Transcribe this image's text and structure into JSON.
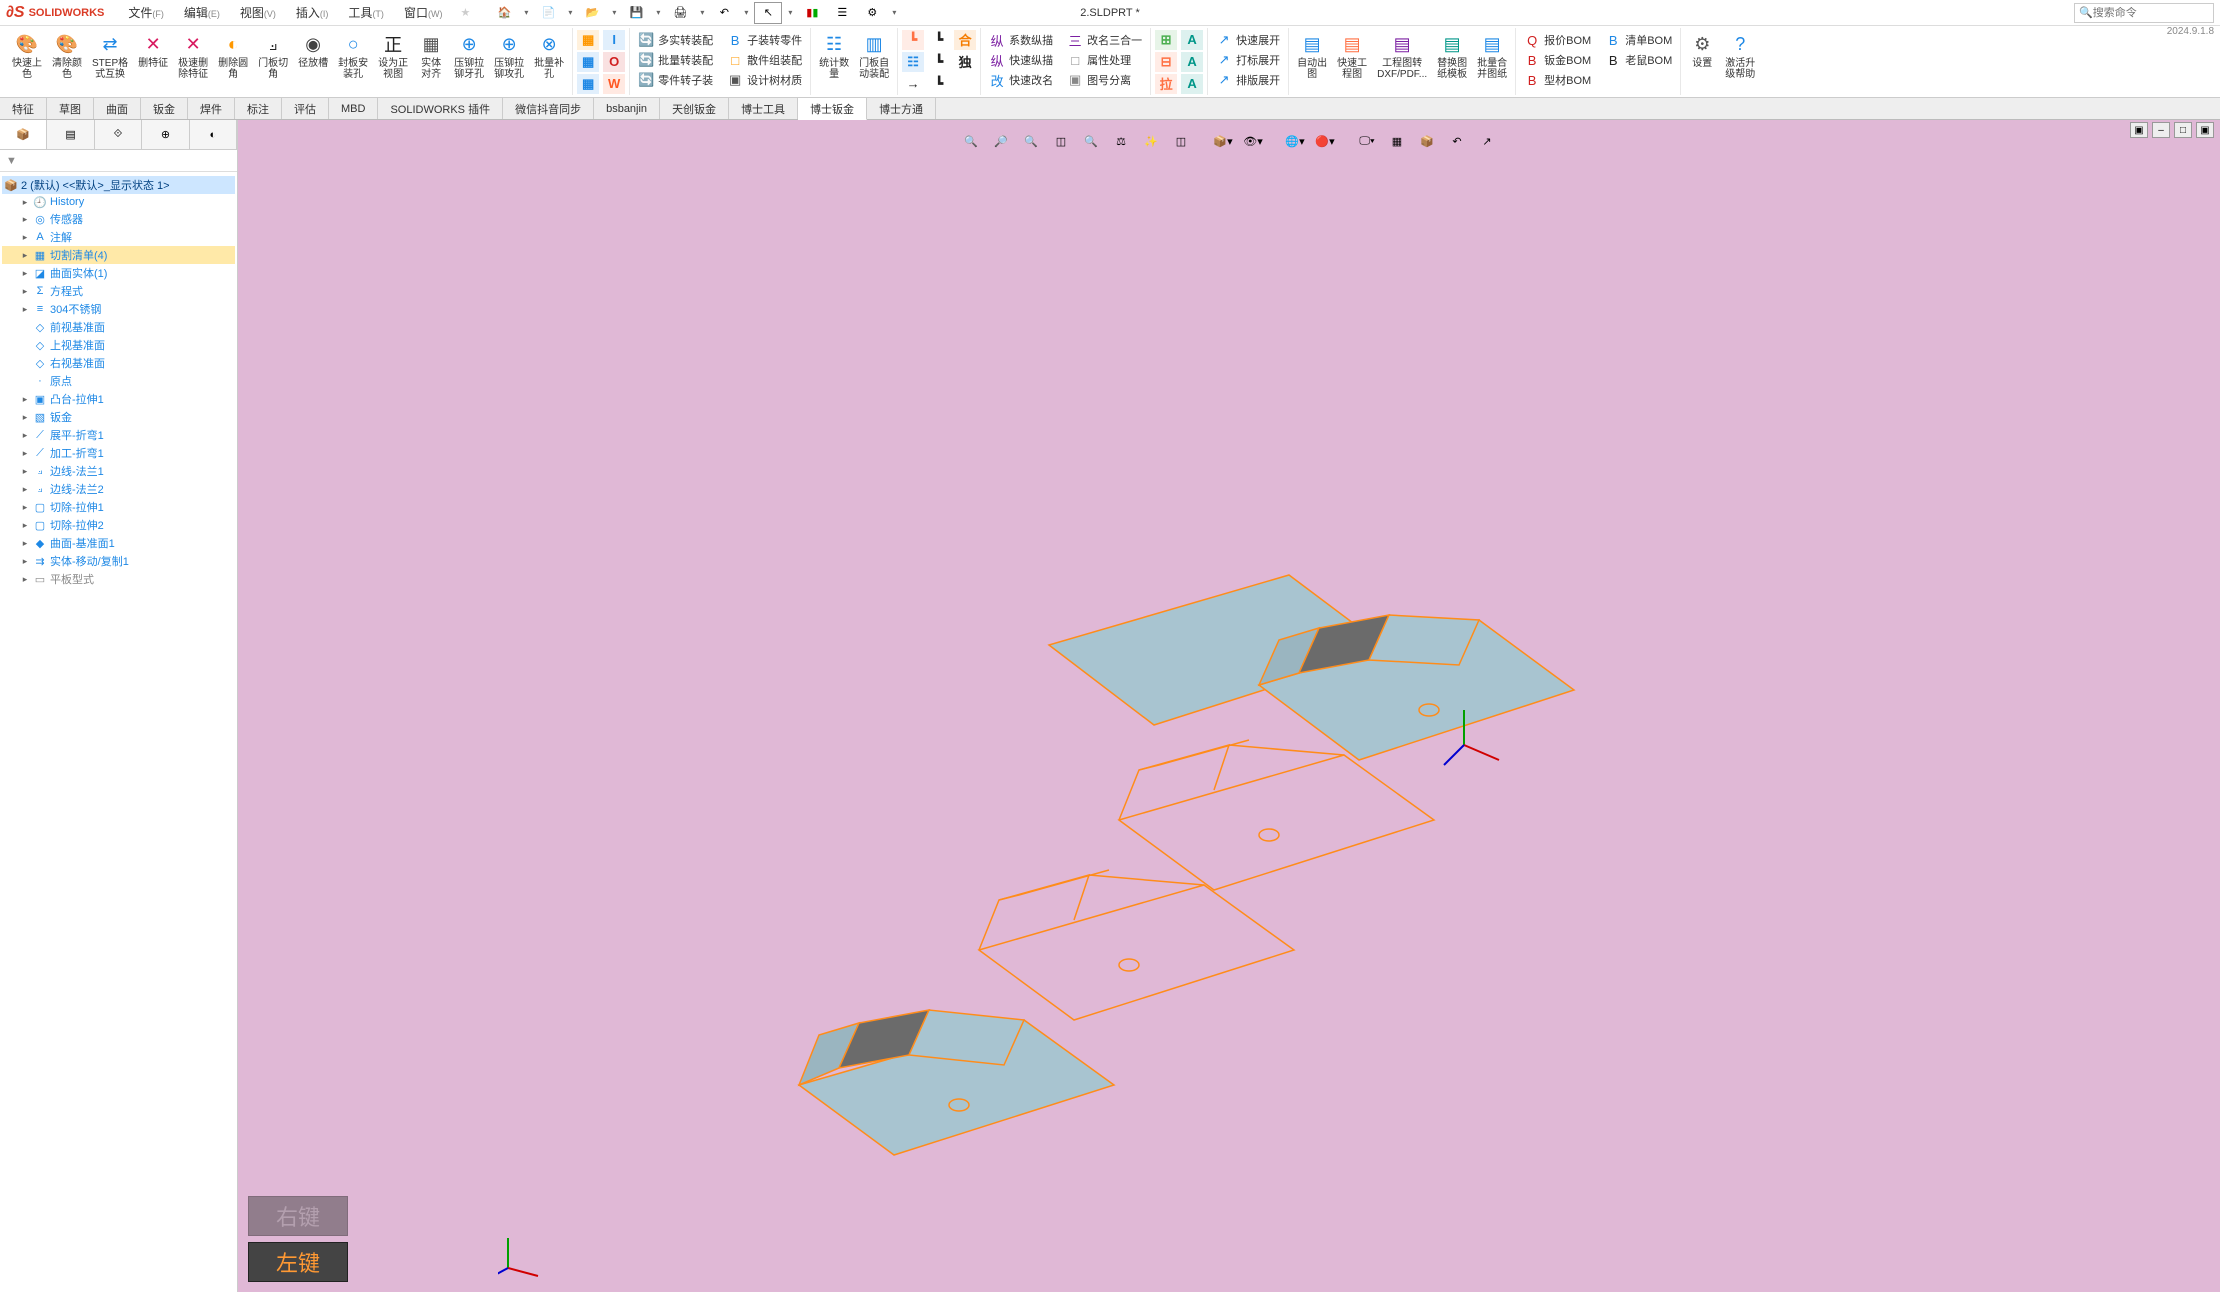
{
  "app": {
    "logo_text": "SOLIDWORKS",
    "doc_title": "2.SLDPRT *",
    "version": "2024.9.1.8",
    "search_ph": "搜索命令"
  },
  "menu": [
    {
      "l": "文件",
      "s": "(F)"
    },
    {
      "l": "编辑",
      "s": "(E)"
    },
    {
      "l": "视图",
      "s": "(V)"
    },
    {
      "l": "插入",
      "s": "(I)"
    },
    {
      "l": "工具",
      "s": "(T)"
    },
    {
      "l": "窗口",
      "s": "(W)"
    }
  ],
  "tabs": [
    "特征",
    "草图",
    "曲面",
    "钣金",
    "焊件",
    "标注",
    "评估",
    "MBD",
    "SOLIDWORKS 插件",
    "微信抖音同步",
    "bsbanjin",
    "天创钣金",
    "博士工具",
    "博士钣金",
    "博士方通"
  ],
  "active_tab": "博士钣金",
  "ribbon_lg": [
    {
      "l": "快速上\n色",
      "c": "#d01f1f",
      "g": "🎨"
    },
    {
      "l": "清除颜\n色",
      "c": "#222",
      "g": "🎨"
    },
    {
      "l": "STEP格\n式互换",
      "c": "#1e88e5",
      "g": "⇄"
    },
    {
      "l": "删特征",
      "c": "#d81b60",
      "g": "✕"
    },
    {
      "l": "极速删\n除特征",
      "c": "#d81b60",
      "g": "✕"
    },
    {
      "l": "删除圆\n角",
      "c": "#ff9800",
      "g": "◐"
    },
    {
      "l": "门板切\n角",
      "c": "#222",
      "g": "⟓"
    },
    {
      "l": "径放槽",
      "c": "#424242",
      "g": "◉"
    },
    {
      "l": "封板安\n装孔",
      "c": "#1e88e5",
      "g": "○"
    },
    {
      "l": "设为正\n视图",
      "c": "#222",
      "g": "正"
    },
    {
      "l": "实体\n对齐",
      "c": "#555",
      "g": "▦"
    },
    {
      "l": "压铆拉\n铆牙孔",
      "c": "#1e88e5",
      "g": "⊕"
    },
    {
      "l": "压铆拉\n铆攻孔",
      "c": "#1e88e5",
      "g": "⊕"
    },
    {
      "l": "批量补\n孔",
      "c": "#1e88e5",
      "g": "⊗"
    }
  ],
  "ribbon_mid_cols": [
    [
      {
        "c": "#ff9800",
        "g": "▦"
      },
      {
        "c": "#1e88e5",
        "g": "▦"
      },
      {
        "c": "#1e88e5",
        "g": "▦"
      }
    ],
    [
      {
        "c": "#1e88e5",
        "g": "I"
      },
      {
        "c": "#d01f1f",
        "g": "O"
      },
      {
        "c": "#ff5722",
        "g": "W"
      }
    ]
  ],
  "ribbon_named": [
    [
      {
        "g": "🔄",
        "c": "#4caf50",
        "l": "多实转装配"
      },
      {
        "g": "🔄",
        "c": "#4caf50",
        "l": "批量转装配"
      },
      {
        "g": "🔄",
        "c": "#ff9800",
        "l": "零件转子装"
      }
    ],
    [
      {
        "g": "B",
        "c": "#1e88e5",
        "l": "子装转零件"
      },
      {
        "g": "□",
        "c": "#ff9800",
        "l": "散件组装配"
      },
      {
        "g": "▣",
        "c": "#555",
        "l": "设计树材质"
      }
    ]
  ],
  "ribbon_stat": [
    {
      "l": "统计数\n量",
      "c": "#1e88e5",
      "g": "☷"
    },
    {
      "l": "门板自\n动装配",
      "c": "#1e88e5",
      "g": "▥"
    }
  ],
  "ribbon_sq": [
    [
      {
        "c": "#ff7043",
        "g": "┗"
      },
      {
        "c": "#1e88e5",
        "g": "☷"
      },
      {
        "c": "#222",
        "g": "→"
      }
    ],
    [
      {
        "c": "#222",
        "g": "┗"
      },
      {
        "c": "#222",
        "g": "┗"
      },
      {
        "c": "#222",
        "g": "┗"
      }
    ],
    [
      {
        "c": "#f57c00",
        "g": "合"
      },
      {
        "c": "#222",
        "g": "独"
      },
      {
        "c": "#222",
        "g": ""
      }
    ]
  ],
  "ribbon_named2": [
    [
      {
        "g": "纵",
        "c": "#7b1fa2",
        "l": "系数纵描"
      },
      {
        "g": "纵",
        "c": "#7b1fa2",
        "l": "快速纵描"
      },
      {
        "g": "改",
        "c": "#1e88e5",
        "l": "快速改名"
      }
    ],
    [
      {
        "g": "三",
        "c": "#7b1fa2",
        "l": "改名三合一"
      },
      {
        "g": "□",
        "c": "#888",
        "l": "属性处理"
      },
      {
        "g": "▣",
        "c": "#888",
        "l": "图号分离"
      }
    ]
  ],
  "ribbon_sq2": [
    [
      {
        "c": "#4caf50",
        "g": "⊞"
      },
      {
        "c": "#ff7043",
        "g": "⊟"
      },
      {
        "c": "#ff7043",
        "g": "拉"
      }
    ],
    [
      {
        "c": "#009688",
        "g": "A"
      },
      {
        "c": "#009688",
        "g": "A"
      },
      {
        "c": "#009688",
        "g": "A"
      }
    ]
  ],
  "ribbon_named3": [
    [
      {
        "g": "↗",
        "c": "#1e88e5",
        "l": "快速展开"
      },
      {
        "g": "↗",
        "c": "#1e88e5",
        "l": "打标展开"
      },
      {
        "g": "↗",
        "c": "#1e88e5",
        "l": "排版展开"
      }
    ]
  ],
  "ribbon_lg2": [
    {
      "l": "自动出\n图",
      "c": "#1e88e5",
      "g": "▤"
    },
    {
      "l": "快速工\n程图",
      "c": "#ff7043",
      "g": "▤"
    },
    {
      "l": "工程图转\nDXF/PDF...",
      "c": "#7b1fa2",
      "g": "▤"
    },
    {
      "l": "替换图\n纸模板",
      "c": "#009688",
      "g": "▤"
    },
    {
      "l": "批量合\n并图纸",
      "c": "#1e88e5",
      "g": "▤"
    }
  ],
  "ribbon_bom": [
    [
      {
        "g": "Q",
        "c": "#d01f1f",
        "l": "报价BOM"
      },
      {
        "g": "B",
        "c": "#d01f1f",
        "l": "钣金BOM"
      },
      {
        "g": "B",
        "c": "#d01f1f",
        "l": "型材BOM"
      }
    ],
    [
      {
        "g": "B",
        "c": "#1e88e5",
        "l": "清单BOM"
      },
      {
        "g": "B",
        "c": "#222",
        "l": "老鼠BOM"
      }
    ]
  ],
  "ribbon_end": [
    {
      "l": "设置",
      "c": "#555",
      "g": "⚙"
    },
    {
      "l": "激活升\n级帮助",
      "c": "#1e88e5",
      "g": "?"
    }
  ],
  "tree": {
    "root": "2 (默认) <<默认>_显示状态 1>",
    "nodes": [
      {
        "i": "🕘",
        "l": "History",
        "c": "#1e88e5"
      },
      {
        "i": "◎",
        "l": "传感器",
        "c": "#1e88e5"
      },
      {
        "i": "A",
        "l": "注解",
        "c": "#1e88e5"
      },
      {
        "i": "▦",
        "l": "切割清单(4)",
        "c": "#1e88e5",
        "sel": true
      },
      {
        "i": "◪",
        "l": "曲面实体(1)",
        "c": "#1e88e5"
      },
      {
        "i": "Σ",
        "l": "方程式",
        "c": "#1e88e5"
      },
      {
        "i": "≡",
        "l": "304不锈钢",
        "c": "#1e88e5"
      },
      {
        "i": "◇",
        "l": "前视基准面",
        "c": "#1e88e5",
        "leaf": true
      },
      {
        "i": "◇",
        "l": "上视基准面",
        "c": "#1e88e5",
        "leaf": true
      },
      {
        "i": "◇",
        "l": "右视基准面",
        "c": "#1e88e5",
        "leaf": true
      },
      {
        "i": "·",
        "l": "原点",
        "c": "#1e88e5",
        "leaf": true
      },
      {
        "i": "▣",
        "l": "凸台-拉伸1",
        "c": "#1e88e5"
      },
      {
        "i": "▧",
        "l": "钣金",
        "c": "#1e88e5"
      },
      {
        "i": "⟋",
        "l": "展平-折弯1",
        "c": "#1e88e5"
      },
      {
        "i": "⟋",
        "l": "加工-折弯1",
        "c": "#1e88e5"
      },
      {
        "i": "⟓",
        "l": "边线-法兰1",
        "c": "#1e88e5"
      },
      {
        "i": "⟓",
        "l": "边线-法兰2",
        "c": "#1e88e5"
      },
      {
        "i": "▢",
        "l": "切除-拉伸1",
        "c": "#1e88e5"
      },
      {
        "i": "▢",
        "l": "切除-拉伸2",
        "c": "#1e88e5"
      },
      {
        "i": "◆",
        "l": "曲面-基准面1",
        "c": "#1e88e5"
      },
      {
        "i": "⇉",
        "l": "实体-移动/复制1",
        "c": "#1e88e5"
      },
      {
        "i": "▭",
        "l": "平板型式",
        "c": "#888"
      }
    ]
  },
  "keys": [
    {
      "l": "右键",
      "dim": true
    },
    {
      "l": "左键",
      "dim": false
    }
  ],
  "vp": {
    "bg": "#e0b8d6",
    "part_fill": "#a8c4d0",
    "part_edge": "#ff8c1a",
    "wire_edge": "#ff8c1a",
    "shadow_fill": "#6b6b6b"
  }
}
